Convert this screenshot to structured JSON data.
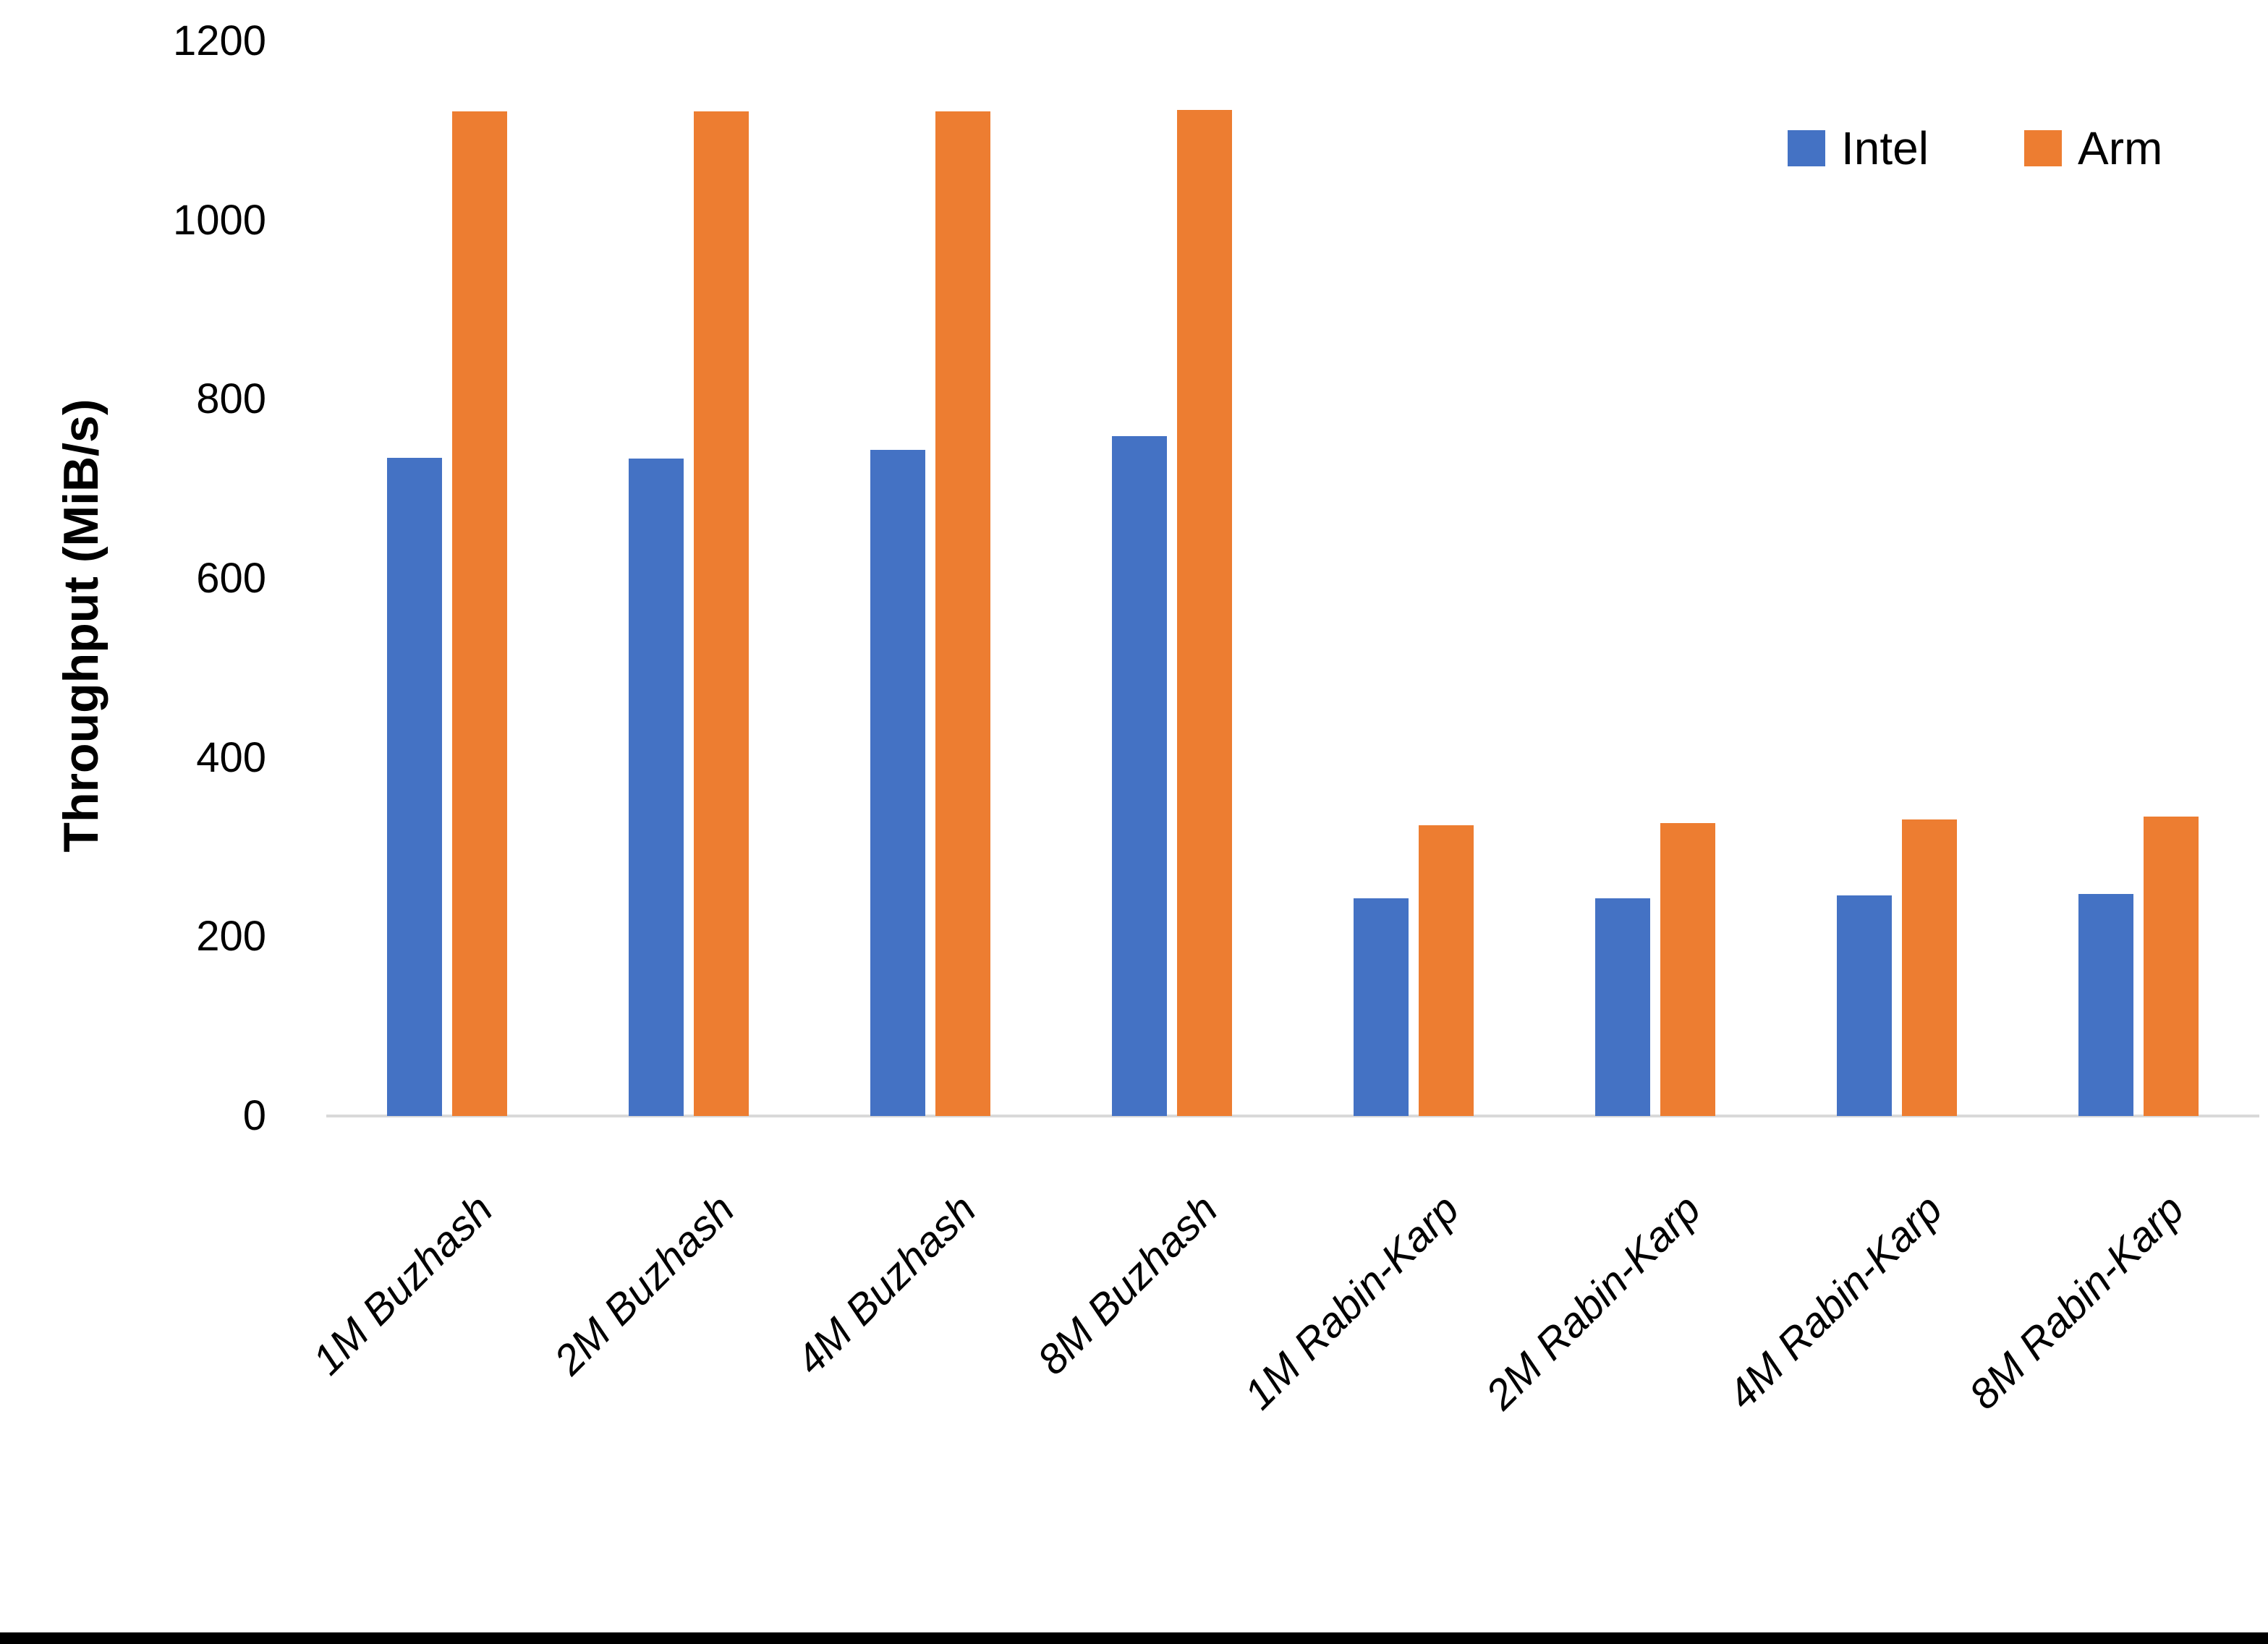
{
  "chart_data": {
    "type": "bar",
    "title": "",
    "xlabel": "",
    "ylabel": "Throughput (MiB/s)",
    "ylim": [
      0,
      1200
    ],
    "yticks": [
      0,
      200,
      400,
      600,
      800,
      1000,
      1200
    ],
    "grid": false,
    "legend_position": "top-right",
    "categories": [
      "1M Buzhash",
      "2M Buzhash",
      "4M Buzhash",
      "8M Buzhash",
      "1M Rabin-Karp",
      "2M Rabin-Karp",
      "4M Rabin-Karp",
      "8M Rabin-Karp"
    ],
    "series": [
      {
        "name": "Intel",
        "color": "#4472C4",
        "values": [
          735,
          734,
          744,
          759,
          243,
          243,
          246,
          248
        ]
      },
      {
        "name": "Arm",
        "color": "#ED7D31",
        "values": [
          1122,
          1122,
          1122,
          1123,
          325,
          327,
          331,
          334
        ]
      }
    ],
    "axis_line_color": "#D9D9D9",
    "text_color": "#000000",
    "background_color": "#FFFFFF",
    "bottom_edge_color": "#000000"
  }
}
